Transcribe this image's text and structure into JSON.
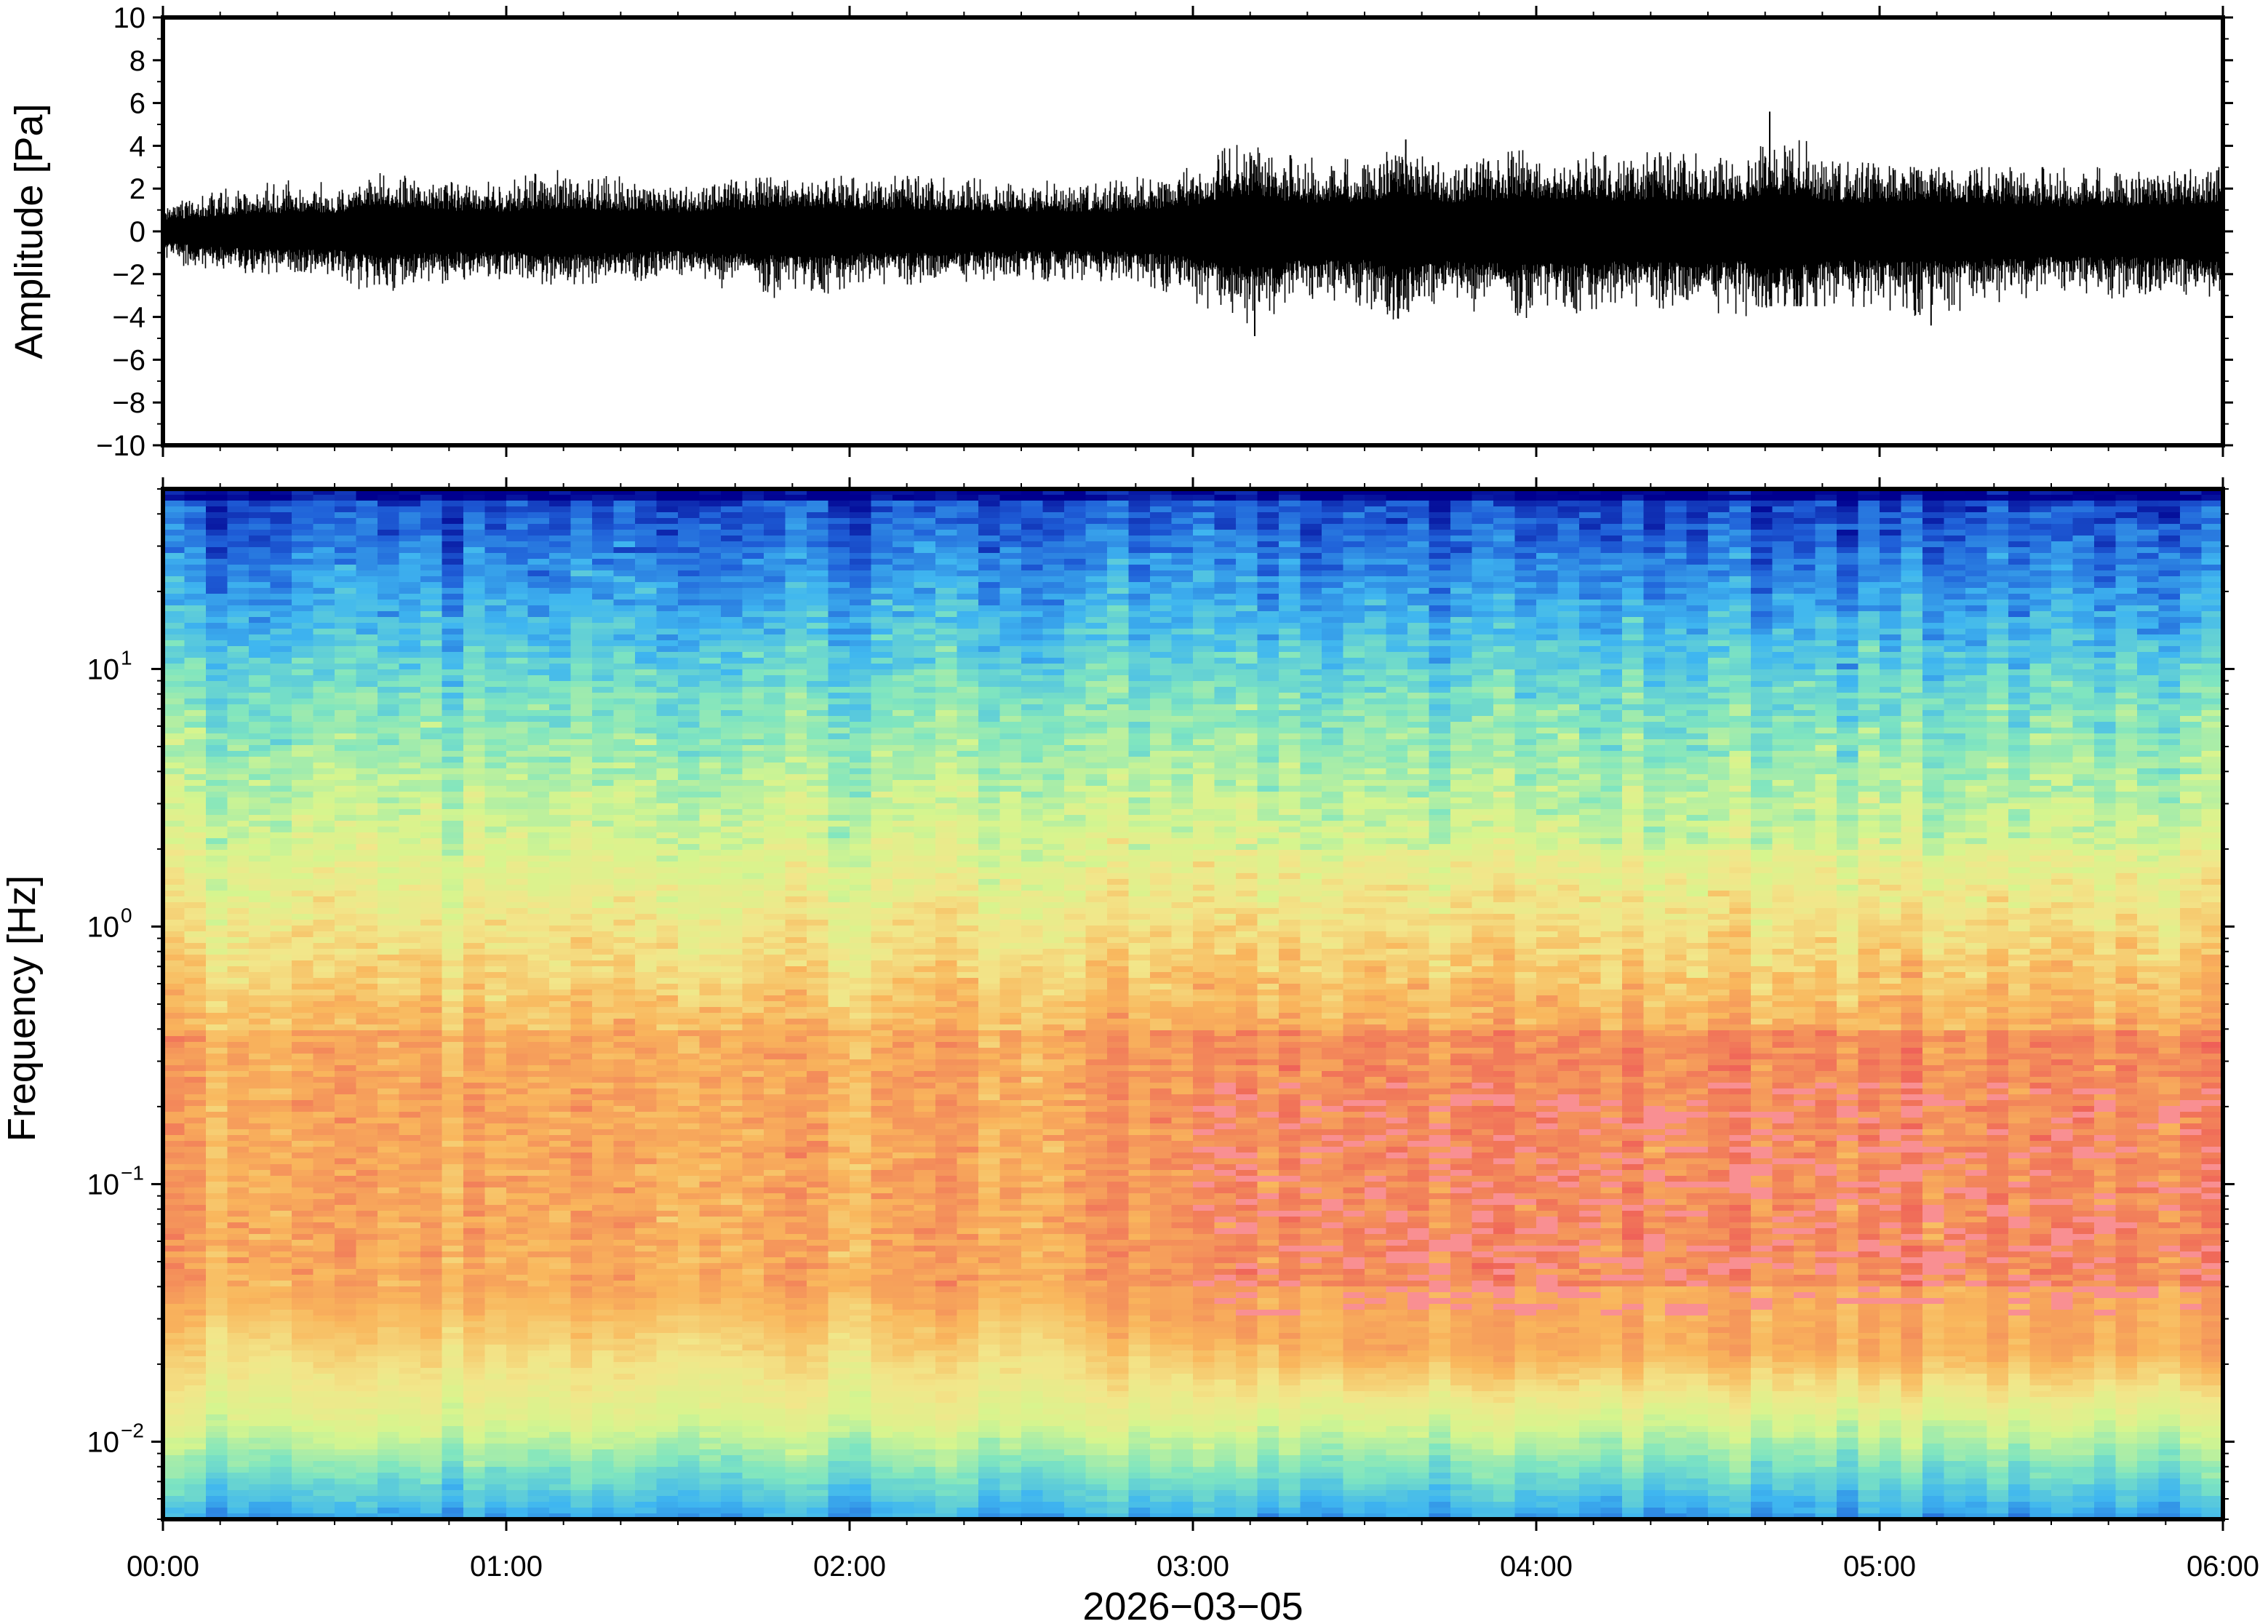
{
  "chart_data": [
    {
      "type": "line",
      "panel": "waveform",
      "ylabel": "Amplitude [Pa]",
      "ylim": [
        -10,
        10
      ],
      "yticks": [
        10,
        8,
        6,
        4,
        2,
        0,
        -2,
        -4,
        -6,
        -8,
        -10
      ],
      "ytick_labels": [
        "10",
        "8",
        "6",
        "4",
        "2",
        "0",
        "−2",
        "−4",
        "−6",
        "−8",
        "−10"
      ],
      "xlim": [
        "00:00",
        "06:00"
      ],
      "envelope_hours": [
        0.0,
        0.25,
        0.5,
        0.62,
        0.8,
        1.0,
        1.15,
        1.5,
        1.85,
        2.0,
        2.2,
        2.5,
        2.75,
        2.9,
        3.0,
        3.1,
        3.17,
        3.3,
        3.5,
        3.6,
        3.75,
        3.95,
        4.2,
        4.5,
        4.6,
        4.68,
        4.9,
        5.1,
        5.5,
        5.8,
        6.0
      ],
      "envelope_max": [
        1.2,
        2.3,
        2.5,
        2.8,
        2.5,
        2.4,
        3.0,
        2.3,
        2.6,
        2.6,
        2.6,
        2.4,
        2.3,
        2.8,
        3.0,
        4.1,
        4.0,
        3.5,
        3.4,
        4.3,
        3.3,
        3.8,
        3.7,
        3.7,
        3.0,
        5.6,
        3.3,
        3.0,
        3.0,
        3.0,
        3.3
      ],
      "envelope_min": [
        -1.5,
        -2.0,
        -2.0,
        -3.2,
        -2.5,
        -2.4,
        -2.5,
        -2.3,
        -3.5,
        -2.6,
        -2.6,
        -2.3,
        -2.4,
        -2.7,
        -3.3,
        -4.0,
        -4.8,
        -3.5,
        -3.5,
        -4.7,
        -3.5,
        -4.3,
        -3.6,
        -3.9,
        -4.2,
        -3.5,
        -3.5,
        -4.4,
        -3.1,
        -3.2,
        -3.6
      ],
      "peaks": [
        {
          "hour": 3.18,
          "value": -4.9
        },
        {
          "hour": 3.62,
          "value": 4.3
        },
        {
          "hour": 4.68,
          "value": 5.6
        },
        {
          "hour": 5.15,
          "value": -4.4
        }
      ]
    },
    {
      "type": "heatmap",
      "panel": "spectrogram",
      "ylabel": "Frequency [Hz]",
      "yscale": "log",
      "ylim": [
        0.005,
        50
      ],
      "yticks": [
        0.01,
        0.1,
        1,
        10
      ],
      "ytick_labels": [
        {
          "base": "10",
          "exp": "−2"
        },
        {
          "base": "10",
          "exp": "−1"
        },
        {
          "base": "10",
          "exp": "0"
        },
        {
          "base": "10",
          "exp": "1"
        }
      ],
      "xlim": [
        "00:00",
        "06:00"
      ],
      "colormap": "rainbow",
      "colormap_stops": [
        "#00008f",
        "#1f5fd8",
        "#3fb6f0",
        "#7fe5c0",
        "#d6f58e",
        "#f2e68a",
        "#f9b65c",
        "#f2825a",
        "#ee5558",
        "#f98f92"
      ],
      "frequency_bands": [
        {
          "freq_range": [
            0.005,
            0.012
          ],
          "color": "light-cyan / light-green"
        },
        {
          "freq_range": [
            0.012,
            0.03
          ],
          "color": "yellow / orange"
        },
        {
          "freq_range": [
            0.03,
            0.4
          ],
          "color": "red, pink spots after 03:00"
        },
        {
          "freq_range": [
            0.4,
            3
          ],
          "color": "orange / yellow"
        },
        {
          "freq_range": [
            3,
            15
          ],
          "color": "yellow-green / cyan"
        },
        {
          "freq_range": [
            15,
            50
          ],
          "color": "blue, dark blue at top"
        }
      ],
      "pink_spots_after": "03:00"
    }
  ],
  "xaxis": {
    "tick_labels": [
      "00:00",
      "01:00",
      "02:00",
      "03:00",
      "04:00",
      "05:00",
      "06:00"
    ],
    "date_label": "2026−03−05"
  }
}
